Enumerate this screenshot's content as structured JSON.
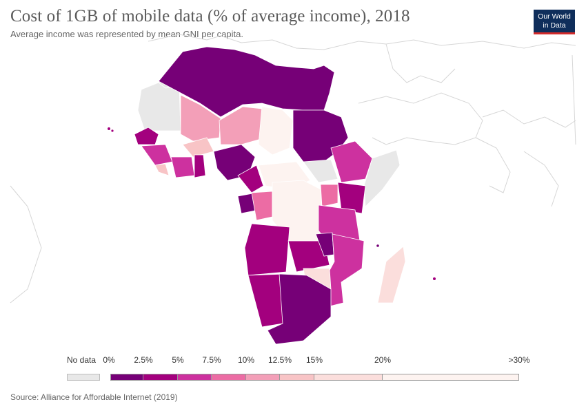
{
  "header": {
    "title": "Cost of 1GB of mobile data (% of average income), 2018",
    "subtitle": "Average income was represented by mean GNI per capita."
  },
  "logo": {
    "line1": "Our World",
    "line2": "in Data"
  },
  "legend": {
    "no_data_label": "No data",
    "no_data_color": "#e8e8e8",
    "bins": [
      {
        "label": "0%",
        "color": "#760077"
      },
      {
        "label": "2.5%",
        "color": "#a3007e"
      },
      {
        "label": "5%",
        "color": "#cd319f"
      },
      {
        "label": "7.5%",
        "color": "#ec6ca4"
      },
      {
        "label": "10%",
        "color": "#f39fb8"
      },
      {
        "label": "12.5%",
        "color": "#f8c4c6"
      },
      {
        "label": "15%",
        "color": "#fbdedc"
      },
      {
        "label": "20%",
        "color": "#fdf3f0"
      },
      {
        "label": ">30%",
        "color": null
      }
    ]
  },
  "source": "Source: Alliance for Affordable Internet (2019)"
}
